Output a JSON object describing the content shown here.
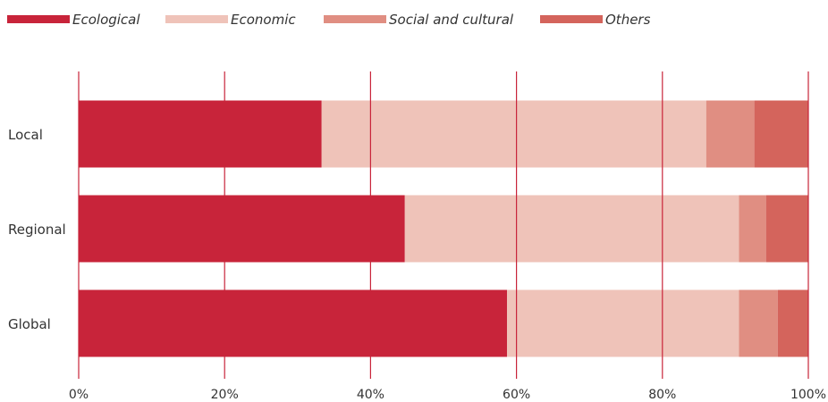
{
  "chart_data": {
    "type": "bar",
    "orientation": "horizontal",
    "stacked": true,
    "normalized": true,
    "categories": [
      "Local",
      "Regional",
      "Global"
    ],
    "series": [
      {
        "name": "Ecological",
        "values": [
          33.3,
          44.7,
          58.7
        ],
        "color": "#c8243a"
      },
      {
        "name": "Economic",
        "values": [
          52.7,
          45.8,
          31.8
        ],
        "color": "#efc3b9"
      },
      {
        "name": "Social and cultural",
        "values": [
          6.6,
          3.7,
          5.3
        ],
        "color": "#e08e82"
      },
      {
        "name": "Others",
        "values": [
          7.4,
          5.8,
          4.2
        ],
        "color": "#d4645c"
      }
    ],
    "xticks": [
      "0%",
      "20%",
      "40%",
      "60%",
      "80%",
      "100%"
    ],
    "xlim": [
      0,
      100
    ],
    "gridline_color": "#c8243a",
    "legend_position": "top-left",
    "grid": true
  }
}
